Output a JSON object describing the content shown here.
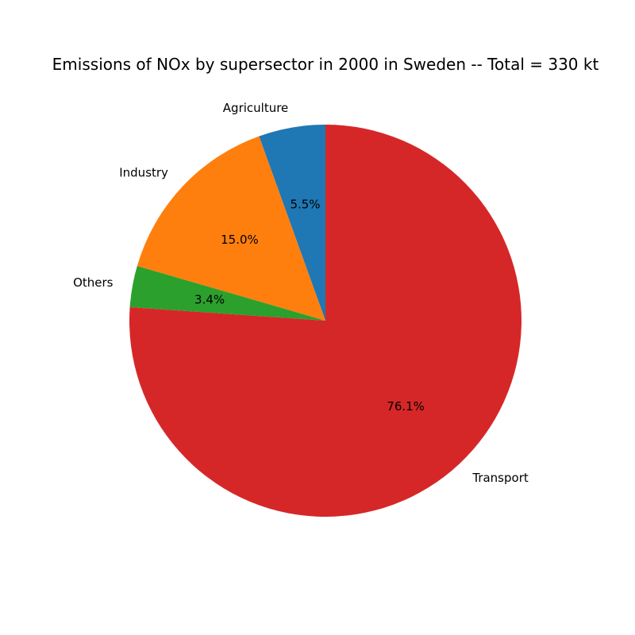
{
  "chart_data": {
    "type": "pie",
    "title": "Emissions of NOx by supersector in 2000 in Sweden -- Total = 330 kt",
    "start_angle_deg": 90,
    "direction": "counterclockwise",
    "slices": [
      {
        "label": "Agriculture",
        "value": 5.5,
        "pct_label": "5.5%",
        "color": "#1f77b4"
      },
      {
        "label": "Industry",
        "value": 15.0,
        "pct_label": "15.0%",
        "color": "#ff7f0e"
      },
      {
        "label": "Others",
        "value": 3.4,
        "pct_label": "3.4%",
        "color": "#2ca02c"
      },
      {
        "label": "Transport",
        "value": 76.1,
        "pct_label": "76.1%",
        "color": "#d62728"
      }
    ]
  }
}
